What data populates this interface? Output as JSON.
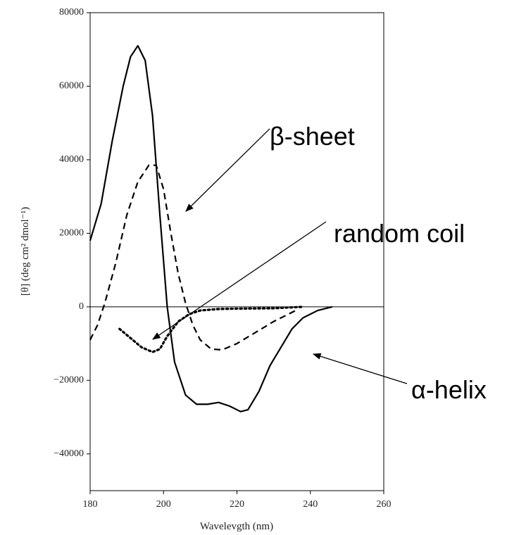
{
  "chart_data": {
    "type": "line",
    "x_label": "Wavelevgth (nm)",
    "y_label": "[θ] (deg cm² dmol⁻¹)",
    "xlim": [
      180,
      260
    ],
    "xticks": [
      180,
      200,
      220,
      240,
      260
    ],
    "ylim": [
      -50000,
      80000
    ],
    "yticks": [
      {
        "value": -40000,
        "label": "−40000"
      },
      {
        "value": -20000,
        "label": "−20000"
      },
      0,
      20000,
      40000,
      60000,
      80000
    ],
    "zero_line": true,
    "series": [
      {
        "name": "α-helix",
        "color": "#000000",
        "style": "solid",
        "x": [
          180,
          183,
          186,
          189,
          191,
          193,
          195,
          197,
          199,
          201,
          203,
          206,
          209,
          212,
          215,
          218,
          221,
          223,
          226,
          229,
          232,
          235,
          238,
          242,
          246
        ],
        "values": [
          18000,
          28000,
          45000,
          60000,
          68000,
          71000,
          67000,
          52000,
          25000,
          0,
          -15000,
          -24000,
          -26500,
          -26500,
          -26000,
          -27000,
          -28500,
          -28000,
          -23000,
          -16000,
          -11000,
          -6000,
          -3000,
          -1000,
          0
        ]
      },
      {
        "name": "β-sheet",
        "color": "#000000",
        "style": "dashed",
        "x": [
          180,
          182,
          184,
          187,
          190,
          193,
          196,
          198,
          200,
          202,
          204,
          206,
          208,
          210,
          213,
          216,
          220,
          225,
          230,
          236
        ],
        "values": [
          -9000,
          -5000,
          1000,
          12000,
          25000,
          34000,
          38500,
          38500,
          32000,
          20000,
          9000,
          1000,
          -5000,
          -9000,
          -11500,
          -11700,
          -10000,
          -7000,
          -4000,
          -1000
        ]
      },
      {
        "name": "random coil",
        "color": "#000000",
        "style": "dotted",
        "x": [
          188,
          191,
          194,
          197,
          199,
          201,
          204,
          207,
          210,
          215,
          220,
          230,
          238
        ],
        "values": [
          -6000,
          -8500,
          -11000,
          -12300,
          -11500,
          -8000,
          -4000,
          -2000,
          -1000,
          -600,
          -500,
          -400,
          0
        ]
      }
    ]
  }
}
